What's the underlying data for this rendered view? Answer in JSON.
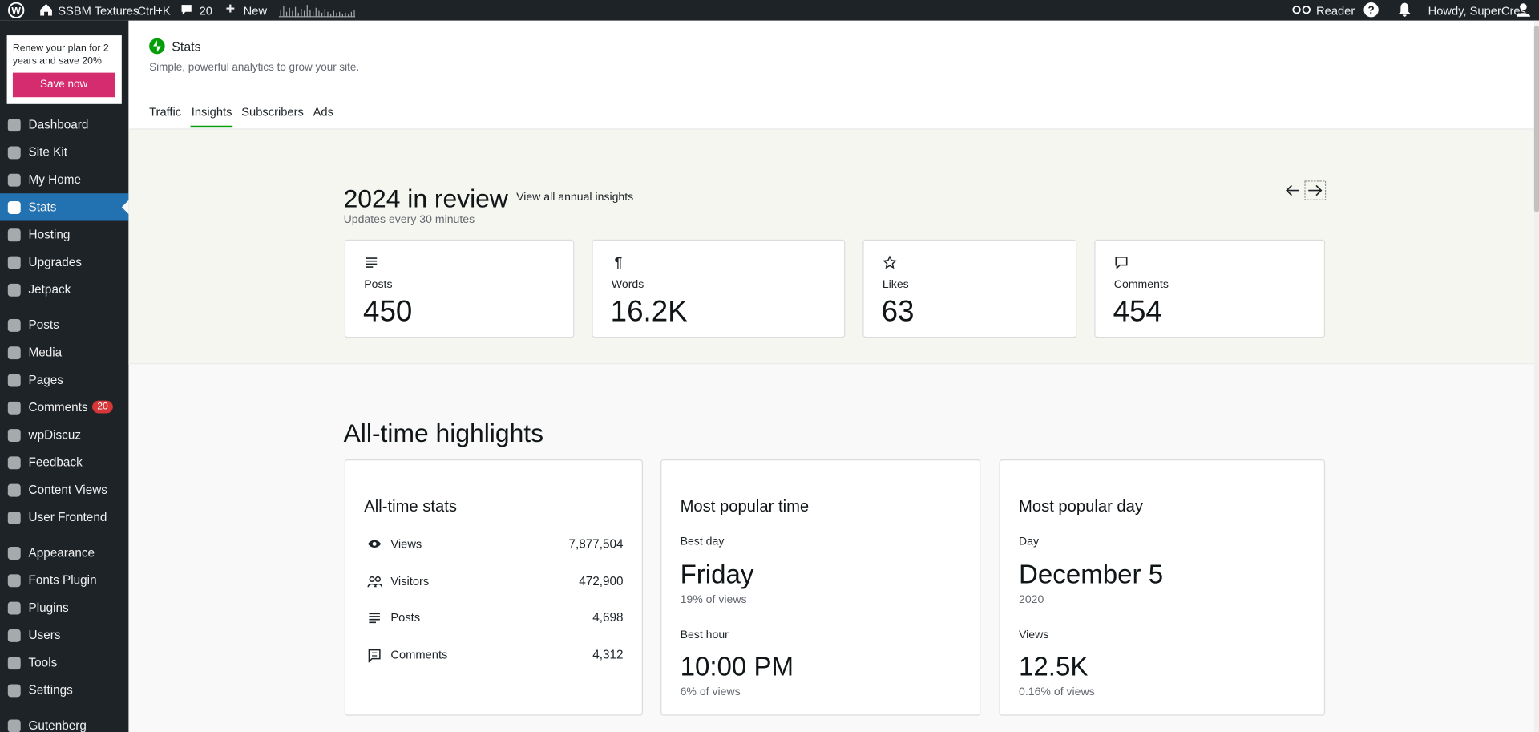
{
  "admin_bar": {
    "site": "SSBM Textures",
    "shortcut": "Ctrl+K",
    "comments": "20",
    "new": "New",
    "reader": "Reader",
    "howdy": "Howdy, SuperCres"
  },
  "promo": {
    "text": "Renew your plan for 2 years and save 20%",
    "button": "Save now"
  },
  "menu": [
    {
      "label": "Dashboard"
    },
    {
      "label": "Site Kit"
    },
    {
      "label": "My Home"
    },
    {
      "label": "Stats"
    },
    {
      "label": "Hosting"
    },
    {
      "label": "Upgrades"
    },
    {
      "label": "Jetpack"
    },
    {
      "label": "Posts"
    },
    {
      "label": "Media"
    },
    {
      "label": "Pages"
    },
    {
      "label": "Comments",
      "badge": "20"
    },
    {
      "label": "wpDiscuz"
    },
    {
      "label": "Feedback"
    },
    {
      "label": "Content Views"
    },
    {
      "label": "User Frontend"
    },
    {
      "label": "Appearance"
    },
    {
      "label": "Fonts Plugin"
    },
    {
      "label": "Plugins"
    },
    {
      "label": "Users"
    },
    {
      "label": "Tools"
    },
    {
      "label": "Settings"
    },
    {
      "label": "Gutenberg"
    }
  ],
  "active_menu": 3,
  "header": {
    "title": "Stats",
    "subtitle": "Simple, powerful analytics to grow your site.",
    "tabs": [
      "Traffic",
      "Insights",
      "Subscribers",
      "Ads"
    ],
    "active_tab": 1
  },
  "review": {
    "title": "2024 in review",
    "link": "View all annual insights",
    "note": "Updates every 30 minutes",
    "cards": [
      {
        "label": "Posts",
        "value": "450"
      },
      {
        "label": "Words",
        "value": "16.2K"
      },
      {
        "label": "Likes",
        "value": "63"
      },
      {
        "label": "Comments",
        "value": "454"
      }
    ]
  },
  "highlights": {
    "title": "All-time highlights",
    "stats": {
      "title": "All-time stats",
      "rows": [
        {
          "label": "Views",
          "value": "7,877,504"
        },
        {
          "label": "Visitors",
          "value": "472,900"
        },
        {
          "label": "Posts",
          "value": "4,698"
        },
        {
          "label": "Comments",
          "value": "4,312"
        }
      ]
    },
    "time": {
      "title": "Most popular time",
      "label1": "Best day",
      "value1": "Friday",
      "note1": "19% of views",
      "label2": "Best hour",
      "value2": "10:00 PM",
      "note2": "6% of views"
    },
    "day": {
      "title": "Most popular day",
      "label1": "Day",
      "value1": "December 5",
      "note1": "2020",
      "label2": "Views",
      "value2": "12.5K",
      "note2": "0.16% of views"
    }
  }
}
